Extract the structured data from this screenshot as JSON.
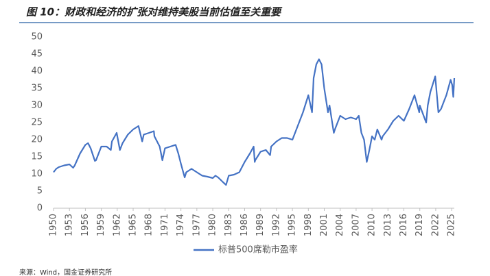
{
  "chart_data": {
    "type": "line",
    "title": "图 10：财政和经济的扩张对维持美股当前估值至关重要",
    "source": "来源：Wind，国金证券研究所",
    "xlim": [
      1950,
      2025.5
    ],
    "xticks": [
      1950,
      1953,
      1956,
      1959,
      1962,
      1965,
      1968,
      1971,
      1974,
      1977,
      1980,
      1983,
      1986,
      1989,
      1992,
      1995,
      1998,
      2001,
      2004,
      2007,
      2010,
      2013,
      2016,
      2019,
      2022,
      2025
    ],
    "ylim": [
      0,
      50
    ],
    "yticks": [
      0,
      5,
      10,
      15,
      20,
      25,
      30,
      35,
      40,
      45,
      50
    ],
    "grid": false,
    "legend": "bottom",
    "x": [
      1950,
      1950.5,
      1951,
      1952,
      1953,
      1953.7,
      1954,
      1955,
      1956,
      1956.5,
      1957,
      1957.8,
      1958,
      1959,
      1960,
      1960.8,
      1961,
      1961.9,
      1962.5,
      1963,
      1964,
      1965,
      1966,
      1966.7,
      1967,
      1968,
      1968.9,
      1969,
      1970,
      1970.5,
      1971,
      1972,
      1973,
      1973.5,
      1974,
      1974.7,
      1975,
      1976,
      1977,
      1978,
      1979,
      1980,
      1980.5,
      1981,
      1982,
      1982.5,
      1983,
      1984,
      1985,
      1986,
      1987,
      1987.7,
      1987.9,
      1988,
      1989,
      1990,
      1990.8,
      1991,
      1992,
      1993,
      1994,
      1995,
      1996,
      1997,
      1998,
      1998.7,
      1999,
      1999.5,
      2000,
      2000.5,
      2001,
      2001.7,
      2002,
      2002.8,
      2003,
      2004,
      2005,
      2006,
      2007,
      2007.5,
      2008,
      2008.5,
      2009,
      2009.5,
      2010,
      2010.5,
      2011,
      2011.8,
      2012,
      2013,
      2014,
      2015,
      2016,
      2017,
      2018,
      2018.9,
      2019,
      2020.2,
      2020.5,
      2021,
      2021.9,
      2022.5,
      2023,
      2023.5,
      2024,
      2024.8,
      2025.1,
      2025.3,
      2025.5
    ],
    "series": [
      {
        "name": "标普500席勒市盈率",
        "color": "#4472c4",
        "values": [
          10.5,
          11.5,
          12,
          12.5,
          12.8,
          11.8,
          12.5,
          16,
          18.5,
          19,
          17.5,
          13.8,
          14,
          18,
          18,
          17,
          19.5,
          22,
          17,
          19,
          21.5,
          23,
          24,
          19.5,
          21.5,
          22,
          22.5,
          21,
          18,
          14,
          17.5,
          18,
          18.5,
          16,
          13,
          9,
          10.5,
          11.5,
          10.5,
          9.5,
          9.2,
          8.8,
          9.5,
          9,
          7.5,
          6.8,
          9.5,
          9.8,
          10.5,
          13.5,
          16,
          18,
          13.5,
          14,
          16.5,
          17,
          15.5,
          18,
          19.5,
          20.5,
          20.5,
          20,
          24,
          28,
          33,
          28,
          38,
          42,
          43.5,
          42,
          35,
          28,
          30,
          22,
          23,
          27,
          26,
          26.5,
          26,
          27,
          22,
          20,
          13.5,
          17,
          21,
          20,
          23,
          20,
          21,
          23,
          25.5,
          27,
          25.5,
          29,
          33,
          28,
          30,
          25,
          30,
          34,
          38.5,
          28,
          29,
          31,
          33,
          37.5,
          36,
          32.5,
          38
        ]
      }
    ]
  }
}
